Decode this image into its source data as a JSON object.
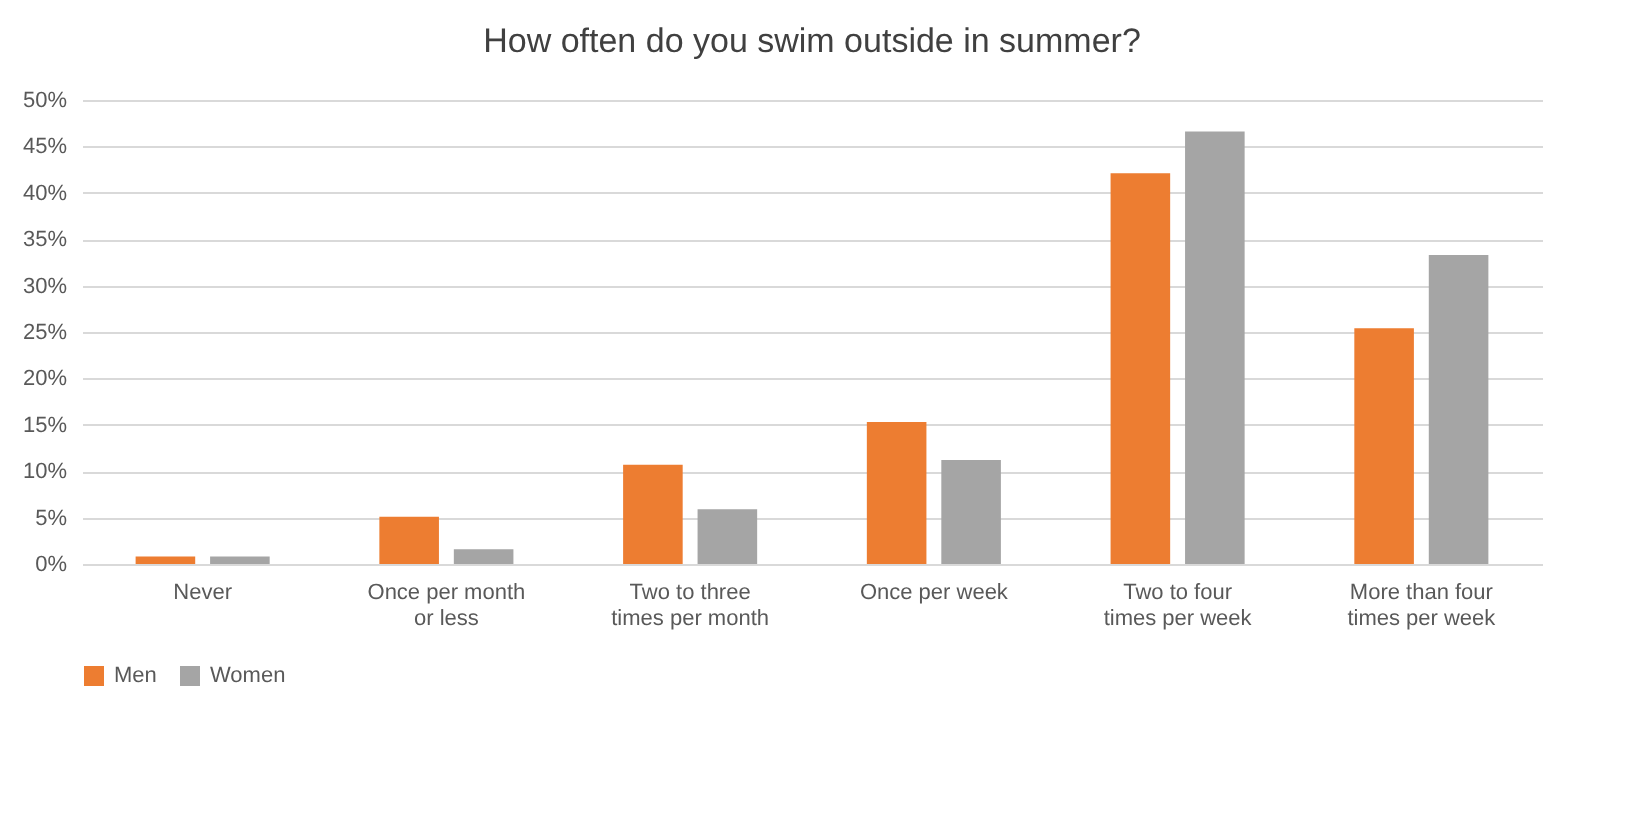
{
  "chart_data": {
    "type": "bar",
    "title": "How often do you swim outside in summer?",
    "categories": [
      "Never",
      "Once per month or less",
      "Two to three times per month",
      "Once per week",
      "Two to four times per week",
      "More than four times per week"
    ],
    "series": [
      {
        "name": "Men",
        "color": "#ed7d31",
        "values": [
          0.8,
          5.1,
          10.7,
          15.3,
          42.1,
          25.4
        ]
      },
      {
        "name": "Women",
        "color": "#a5a5a5",
        "values": [
          0.8,
          1.6,
          5.9,
          11.2,
          46.6,
          33.3
        ]
      }
    ],
    "ylim": [
      0,
      50
    ],
    "yticks": [
      {
        "value": 0,
        "label": "0%"
      },
      {
        "value": 5,
        "label": "5%"
      },
      {
        "value": 10,
        "label": "10%"
      },
      {
        "value": 15,
        "label": "15%"
      },
      {
        "value": 20,
        "label": "20%"
      },
      {
        "value": 25,
        "label": "25%"
      },
      {
        "value": 30,
        "label": "30%"
      },
      {
        "value": 35,
        "label": "35%"
      },
      {
        "value": 40,
        "label": "40%"
      },
      {
        "value": 45,
        "label": "45%"
      },
      {
        "value": 50,
        "label": "50%"
      }
    ],
    "grid": "y",
    "legend": "bottom"
  }
}
